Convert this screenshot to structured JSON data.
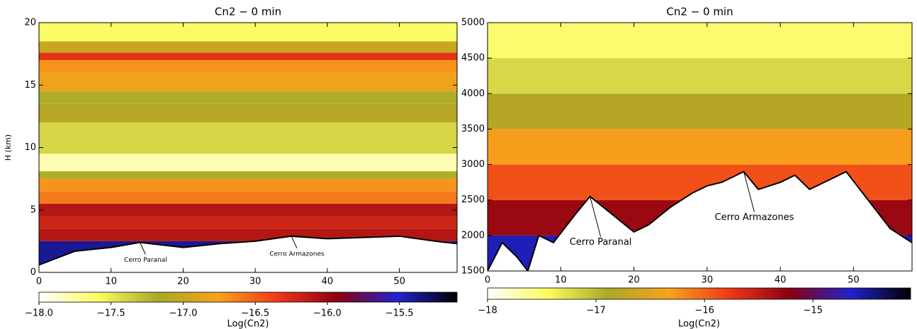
{
  "chart_data": [
    {
      "type": "contour",
      "title": "Cn2 − 0 min",
      "ylabel": "H (km)",
      "xlim": [
        0,
        58
      ],
      "xticks": [
        0,
        10,
        20,
        30,
        40,
        50
      ],
      "ylim": [
        0,
        20
      ],
      "yticks": [
        0,
        5,
        10,
        15,
        20
      ],
      "layers": {
        "edges": [
          0,
          2.5,
          3.5,
          4.5,
          5.5,
          6.5,
          7.5,
          8.1,
          9.5,
          12,
          13.5,
          14.5,
          16,
          17,
          17.6,
          18.5,
          20
        ],
        "values": [
          -15.4,
          -16.1,
          -16.2,
          -16.1,
          -16.6,
          -16.7,
          -17.2,
          -17.8,
          -17.4,
          -17.1,
          -17.2,
          -16.8,
          -16.7,
          -16.3,
          -17.0,
          -17.6
        ]
      },
      "terrain": {
        "x": [
          0,
          5,
          10,
          14,
          20,
          25,
          30,
          35,
          40,
          45,
          50,
          55,
          58
        ],
        "y": [
          0.6,
          1.7,
          2.0,
          2.4,
          2.0,
          2.3,
          2.5,
          2.9,
          2.7,
          2.8,
          2.9,
          2.5,
          2.3
        ]
      },
      "annotations": [
        {
          "text": "Cerro Paranal",
          "x": 14,
          "y": 2.4
        },
        {
          "text": "Cerro Armazones",
          "x": 35,
          "y": 2.9
        }
      ],
      "colorbar": {
        "label": "Log(Cn2)",
        "clim": [
          -18,
          -15.1
        ],
        "ticks": [
          {
            "value": -18,
            "label": "−18.0"
          },
          {
            "value": -17.5,
            "label": "−17.5"
          },
          {
            "value": -17,
            "label": "−17.0"
          },
          {
            "value": -16.5,
            "label": "−16.5"
          },
          {
            "value": -16,
            "label": "−16.0"
          },
          {
            "value": -15.5,
            "label": "−15.5"
          }
        ]
      },
      "colormap": [
        "#ffffff",
        "#fbfb60",
        "#a9a827",
        "#f7a21c",
        "#f03818",
        "#8a0010",
        "#2222cc",
        "#000000"
      ]
    },
    {
      "type": "contour",
      "title": "Cn2 − 0 min",
      "xlim": [
        0,
        58
      ],
      "xticks": [
        0,
        10,
        20,
        30,
        40,
        50
      ],
      "ylim": [
        1500,
        5000
      ],
      "yticks": [
        1500,
        2000,
        2500,
        3000,
        3500,
        4000,
        4500,
        5000
      ],
      "layers": {
        "edges": [
          1500,
          2000,
          2500,
          3000,
          3500,
          4000,
          4500,
          5000
        ],
        "values": [
          -14.6,
          -15.3,
          -15.9,
          -16.3,
          -16.8,
          -17.2,
          -17.5
        ]
      },
      "terrain": {
        "x": [
          0,
          2,
          4,
          5.5,
          7,
          9,
          12,
          14,
          17,
          20,
          22,
          25,
          28,
          30,
          32,
          35,
          37,
          40,
          42,
          44,
          46,
          49,
          52,
          55,
          58
        ],
        "y": [
          1500,
          1900,
          1700,
          1500,
          2000,
          1900,
          2300,
          2550,
          2300,
          2050,
          2150,
          2400,
          2600,
          2700,
          2750,
          2900,
          2650,
          2750,
          2850,
          2650,
          2750,
          2900,
          2500,
          2100,
          1900
        ]
      },
      "annotations": [
        {
          "text": "Cerro Paranal",
          "x": 14,
          "y": 2550
        },
        {
          "text": "Cerro Armazones",
          "x": 35,
          "y": 2900
        }
      ],
      "colorbar": {
        "label": "Log(Cn2)",
        "clim": [
          -18,
          -14.1
        ],
        "ticks": [
          {
            "value": -18,
            "label": "−18"
          },
          {
            "value": -17,
            "label": "−17"
          },
          {
            "value": -16,
            "label": "−16"
          },
          {
            "value": -15,
            "label": "−15"
          }
        ]
      },
      "colormap": [
        "#ffffff",
        "#fbfb60",
        "#a9a827",
        "#f7a21c",
        "#f03818",
        "#8a0010",
        "#2222cc",
        "#000000"
      ]
    }
  ]
}
